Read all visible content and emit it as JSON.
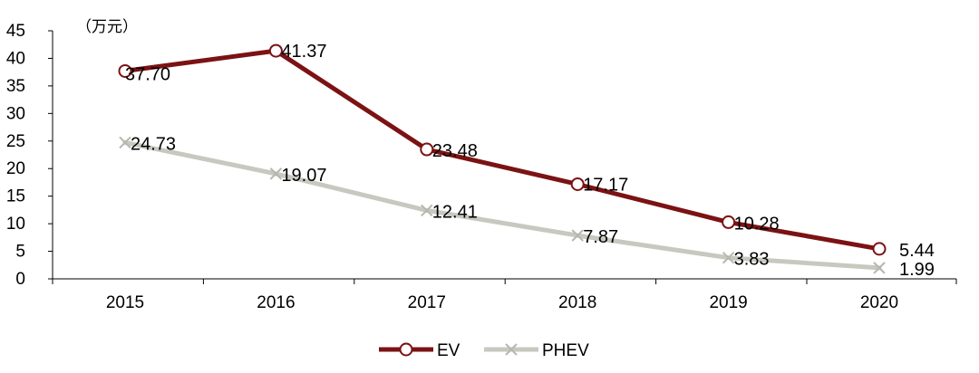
{
  "chart_data": {
    "type": "line",
    "unit_label": "（万元）",
    "x": [
      "2015",
      "2016",
      "2017",
      "2018",
      "2019",
      "2020"
    ],
    "ylim": [
      0,
      45
    ],
    "yticks": [
      0,
      5,
      10,
      15,
      20,
      25,
      30,
      35,
      40,
      45
    ],
    "grid": false,
    "legend_position": "bottom",
    "series": [
      {
        "name": "EV",
        "values": [
          37.7,
          41.37,
          23.48,
          17.17,
          10.28,
          5.44
        ],
        "labels": [
          "37.70",
          "41.37",
          "23.48",
          "17.17",
          "10.28",
          "5.44"
        ],
        "color": "#7b1214",
        "marker": "circle"
      },
      {
        "name": "PHEV",
        "values": [
          24.73,
          19.07,
          12.41,
          7.87,
          3.83,
          1.99
        ],
        "labels": [
          "24.73",
          "19.07",
          "12.41",
          "7.87",
          "3.83",
          "1.99"
        ],
        "color": "#c8c8c0",
        "marker": "x"
      }
    ]
  }
}
